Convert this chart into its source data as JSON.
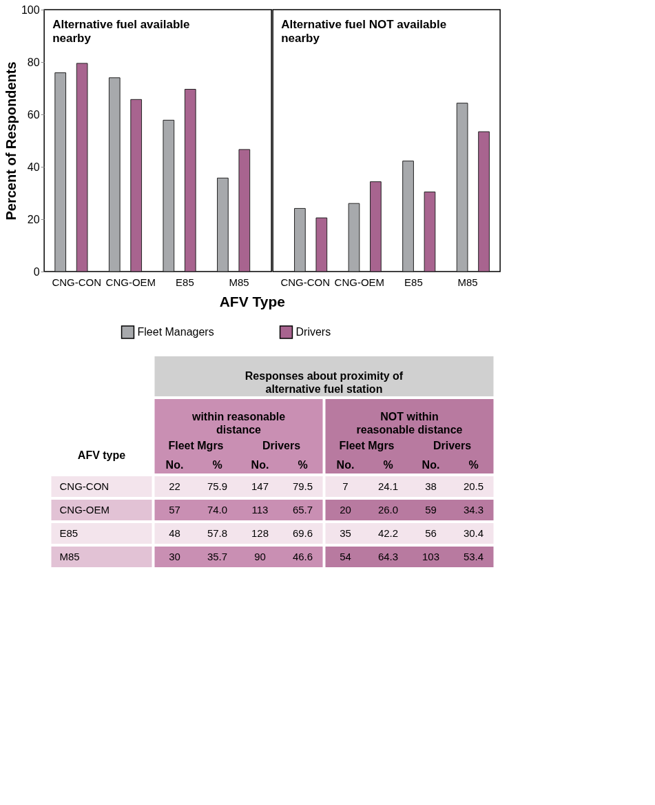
{
  "chart_data": [
    {
      "type": "bar",
      "categories": [
        "CNG-CON",
        "CNG-OEM",
        "E85",
        "M85"
      ],
      "ylabel": "Percent of Respondents",
      "xlabel": "AFV Type",
      "annotations": [
        "Alternative fuel available nearby"
      ],
      "ylim": [
        0,
        100
      ],
      "yticks": [
        0,
        20,
        40,
        60,
        80,
        100
      ],
      "grid": false,
      "legend": "bottom",
      "series": [
        {
          "name": "Fleet Managers",
          "color": "#a7a9ac",
          "values": [
            75.9,
            74.0,
            57.8,
            35.7
          ]
        },
        {
          "name": "Drivers",
          "color": "#a8648f",
          "values": [
            79.5,
            65.7,
            69.6,
            46.6
          ]
        }
      ]
    },
    {
      "type": "bar",
      "categories": [
        "CNG-CON",
        "CNG-OEM",
        "E85",
        "M85"
      ],
      "annotations": [
        "Alternative fuel NOT available nearby"
      ],
      "ylim": [
        0,
        100
      ],
      "yticks": [
        0,
        20,
        40,
        60,
        80,
        100
      ],
      "grid": false,
      "tick_labels": "x",
      "series": [
        {
          "color": "#a7a9ac",
          "values": [
            24.1,
            26.0,
            42.2,
            64.3
          ]
        },
        {
          "color": "#a8648f",
          "values": [
            20.5,
            34.3,
            30.4,
            53.4
          ]
        }
      ]
    },
    {
      "type": "other",
      "title": "Responses about proximity of alternative fuel station",
      "annotations": [
        "within reasonable distance",
        "NOT within reasonable distance",
        "AFV type",
        "Fleet Mgrs",
        "Drivers",
        "Fleet Mgrs",
        "Drivers",
        "No.",
        "%",
        "No.",
        "%",
        "No.",
        "%",
        "No.",
        "%",
        "CNG-CON",
        "22",
        "75.9",
        "147",
        "79.5",
        "7",
        "24.1",
        "38",
        "20.5",
        "CNG-OEM",
        "57",
        "74.0",
        "113",
        "65.7",
        "20",
        "26.0",
        "59",
        "34.3",
        "E85",
        "48",
        "57.8",
        "128",
        "69.6",
        "35",
        "42.2",
        "56",
        "30.4",
        "M85",
        "30",
        "35.7",
        "90",
        "46.6",
        "54",
        "64.3",
        "103",
        "53.4"
      ]
    }
  ]
}
